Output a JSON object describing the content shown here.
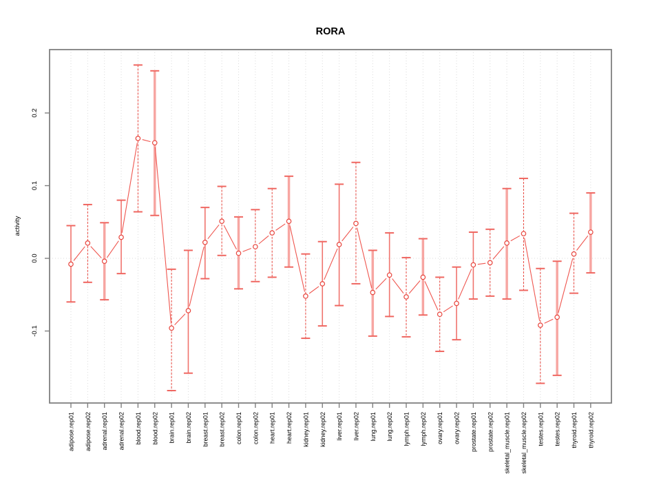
{
  "title": "RORA",
  "chart_data": {
    "type": "line",
    "subtype": "points-with-error-bars",
    "title": "RORA",
    "xlabel": "",
    "ylabel": "activity",
    "ylim": [
      -0.199,
      0.287
    ],
    "grid": "vertical-dotted-per-category-plus-dotted-zero-line",
    "legend": "none",
    "ytick_values": [
      -0.1,
      0.0,
      0.1,
      0.2
    ],
    "ytick_labels": [
      "-0.1",
      "0.0",
      "0.1",
      "0.2"
    ],
    "categories": [
      "adipose.rep01",
      "adipose.rep02",
      "adrenal.rep01",
      "adrenal.rep02",
      "blood.rep01",
      "blood.rep02",
      "brain.rep01",
      "brain.rep02",
      "breast.rep01",
      "breast.rep02",
      "colon.rep01",
      "colon.rep02",
      "heart.rep01",
      "heart.rep02",
      "kidney.rep01",
      "kidney.rep02",
      "liver.rep01",
      "liver.rep02",
      "lung.rep01",
      "lung.rep02",
      "lymph.rep01",
      "lymph.rep02",
      "ovary.rep01",
      "ovary.rep02",
      "prostate.rep01",
      "prostate.rep02",
      "skeletal_muscle.rep01",
      "skeletal_muscle.rep02",
      "testes.rep01",
      "testes.rep02",
      "thyroid.rep01",
      "thyroid.rep02"
    ],
    "values": [
      -0.008,
      0.021,
      -0.004,
      0.029,
      0.165,
      0.159,
      -0.096,
      -0.072,
      0.022,
      0.051,
      0.007,
      0.016,
      0.035,
      0.051,
      -0.052,
      -0.035,
      0.019,
      0.048,
      -0.047,
      -0.023,
      -0.053,
      -0.026,
      -0.077,
      -0.062,
      -0.009,
      -0.006,
      0.021,
      0.034,
      -0.092,
      -0.081,
      0.006,
      0.036
    ],
    "error_low": [
      -0.06,
      -0.033,
      -0.057,
      -0.021,
      0.064,
      0.059,
      -0.182,
      -0.158,
      -0.028,
      0.004,
      -0.042,
      -0.032,
      -0.026,
      -0.012,
      -0.11,
      -0.093,
      -0.065,
      -0.035,
      -0.107,
      -0.08,
      -0.108,
      -0.078,
      -0.128,
      -0.112,
      -0.056,
      -0.052,
      -0.056,
      -0.044,
      -0.172,
      -0.161,
      -0.048,
      -0.02
    ],
    "error_high": [
      0.045,
      0.074,
      0.049,
      0.08,
      0.266,
      0.258,
      -0.015,
      0.011,
      0.07,
      0.099,
      0.057,
      0.067,
      0.096,
      0.113,
      0.006,
      0.023,
      0.102,
      0.132,
      0.011,
      0.035,
      0.001,
      0.027,
      -0.026,
      -0.012,
      0.036,
      0.04,
      0.096,
      0.11,
      -0.014,
      -0.004,
      0.062,
      0.09
    ],
    "bar_styles": [
      "solid",
      "dashed",
      "thick",
      "solid",
      "dashed",
      "thick",
      "dashed",
      "solid",
      "solid",
      "dashed",
      "thick",
      "dashed",
      "dashed",
      "thick",
      "dashed",
      "solid",
      "solid",
      "dashed",
      "thick",
      "solid",
      "dashed",
      "thick",
      "dashed",
      "solid",
      "solid",
      "dashed",
      "thick",
      "dashed",
      "dashed",
      "thick",
      "dashed",
      "thick"
    ]
  },
  "colors": {
    "point": "#e8443c",
    "segment": "#ef554e",
    "errorbar_dashed": "#e8443c",
    "errorbar_solid": "#f0736d",
    "errorbar_thick": "#f7a6a2",
    "cap": "#ef6660",
    "grid": "#dadada",
    "zero_line": "#d8d8d8",
    "frame": "#7f7f7f",
    "text": "#000000"
  }
}
